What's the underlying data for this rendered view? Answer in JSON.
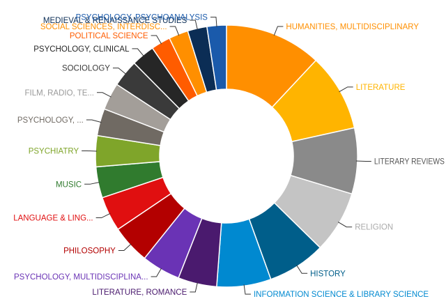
{
  "chart_data": {
    "type": "pie",
    "variant": "donut",
    "title": "",
    "slices": [
      {
        "label": "HUMANITIES, MULTIDISCIPLINARY",
        "value": 12.5,
        "color": "#ff8f00",
        "label_color": "#ff8f00"
      },
      {
        "label": "LITERATURE",
        "value": 10.0,
        "color": "#ffb400",
        "label_color": "#ffb400"
      },
      {
        "label": "LITERARY REVIEWS",
        "value": 8.5,
        "color": "#8a8a8a",
        "label_color": "#555555"
      },
      {
        "label": "RELIGION",
        "value": 8.0,
        "color": "#c4c4c4",
        "label_color": "#aaaaaa"
      },
      {
        "label": "HISTORY",
        "value": 7.5,
        "color": "#005e8a",
        "label_color": "#005e8a"
      },
      {
        "label": "INFORMATION SCIENCE & LIBRARY SCIENCE",
        "value": 7.0,
        "color": "#0089d0",
        "label_color": "#0089d0"
      },
      {
        "label": "LITERATURE, ROMANCE",
        "value": 5.0,
        "color": "#4a1a6e",
        "label_color": "#4a1a6e"
      },
      {
        "label": "PSYCHOLOGY, MULTIDISCIPLINA...",
        "value": 5.0,
        "color": "#6a33b5",
        "label_color": "#6a33b5"
      },
      {
        "label": "PHILOSOPHY",
        "value": 5.0,
        "color": "#b30000",
        "label_color": "#b30000"
      },
      {
        "label": "LANGUAGE & LING...",
        "value": 4.5,
        "color": "#e00f10",
        "label_color": "#e00f10"
      },
      {
        "label": "MUSIC",
        "value": 4.0,
        "color": "#307b2e",
        "label_color": "#307b2e"
      },
      {
        "label": "PSYCHIATRY",
        "value": 4.0,
        "color": "#7fa52a",
        "label_color": "#7fa52a"
      },
      {
        "label": "PSYCHOLOGY, ...",
        "value": 3.5,
        "color": "#706a63",
        "label_color": "#706a63"
      },
      {
        "label": "FILM, RADIO, TE...",
        "value": 3.5,
        "color": "#a39e99",
        "label_color": "#999999"
      },
      {
        "label": "SOCIOLOGY",
        "value": 3.5,
        "color": "#3a3a3a",
        "label_color": "#3a3a3a"
      },
      {
        "label": "PSYCHOLOGY, CLINICAL",
        "value": 3.0,
        "color": "#262626",
        "label_color": "#262626"
      },
      {
        "label": "POLITICAL SCIENCE",
        "value": 2.5,
        "color": "#ff5c00",
        "label_color": "#ff5c00"
      },
      {
        "label": "SOCIAL SCIENCES, INTERDISC...",
        "value": 2.5,
        "color": "#ff8f00",
        "label_color": "#ff8f00"
      },
      {
        "label": "MEDIEVAL & RENAISSANCE STUDIES",
        "value": 2.5,
        "color": "#0b2d55",
        "label_color": "#0b2d55"
      },
      {
        "label": "PSYCHOLOGY, PSYCHOANALYSIS",
        "value": 2.5,
        "color": "#1a5aab",
        "label_color": "#1a5aab"
      }
    ]
  }
}
